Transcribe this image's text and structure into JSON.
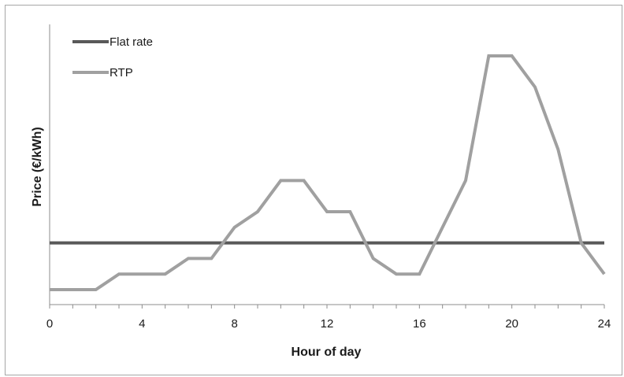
{
  "chart_data": {
    "type": "line",
    "xlabel": "Hour of day",
    "ylabel": "Price (€/kWh)",
    "xlim": [
      0,
      24
    ],
    "ylim": [
      0,
      15
    ],
    "x_ticks": [
      "0",
      "4",
      "8",
      "12",
      "16",
      "20",
      "24"
    ],
    "grid": false,
    "legend": "top-left",
    "series": [
      {
        "name": "Flat rate",
        "color": "#595959",
        "x": [
          0,
          24
        ],
        "y": [
          3,
          3
        ]
      },
      {
        "name": "RTP",
        "color": "#a0a0a0",
        "x": [
          0,
          1,
          2,
          3,
          4,
          5,
          6,
          7,
          8,
          9,
          10,
          11,
          12,
          13,
          14,
          15,
          16,
          17,
          18,
          19,
          20,
          21,
          22,
          23,
          24
        ],
        "y": [
          0,
          0,
          0,
          1,
          1,
          1,
          2,
          2,
          4,
          5,
          7,
          7,
          5,
          5,
          2,
          1,
          1,
          4,
          7,
          15,
          15,
          13,
          9,
          3,
          1
        ]
      }
    ]
  }
}
